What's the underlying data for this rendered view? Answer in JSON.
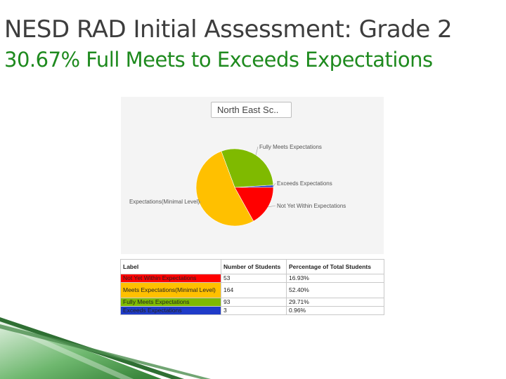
{
  "slide": {
    "title": "NESD RAD Initial Assessment:  Grade 2",
    "subtitle": "30.67% Full Meets to Exceeds Expectations"
  },
  "chart_panel": {
    "select_value": "North East Sc.."
  },
  "chart_data": {
    "type": "pie",
    "slices": [
      {
        "label": "Not Yet Within Expectations",
        "callout": "Not Yet Within Expectations",
        "value": 53,
        "color": "#ff0000"
      },
      {
        "label": "Meets Expectations(Minimal Level)",
        "callout": "Expectations(Minimal Level)",
        "value": 164,
        "color": "#ffc000"
      },
      {
        "label": "Fully Meets Expectations",
        "callout": "Fully Meets Expectations",
        "value": 93,
        "color": "#7fba00"
      },
      {
        "label": "Exceeds Expectations",
        "callout": "Exceeds Expectations",
        "value": 3,
        "color": "#1f3bc8"
      }
    ]
  },
  "table": {
    "headers": [
      "Label",
      "Number of Students",
      "Percentage of Total Students"
    ],
    "rows": [
      {
        "label": "Not Yet Within Expectations",
        "count": "53",
        "percent": "16.93%",
        "color": "#ff0000"
      },
      {
        "label": "Meets Expectations(Minimal Level)",
        "count": "164",
        "percent": "52.40%",
        "color": "#ffc000"
      },
      {
        "label": "Fully Meets Expectations",
        "count": "93",
        "percent": "29.71%",
        "color": "#7fba00"
      },
      {
        "label": "Exceeds Expectations",
        "count": "3",
        "percent": "0.96%",
        "color": "#1f3bc8"
      }
    ]
  }
}
